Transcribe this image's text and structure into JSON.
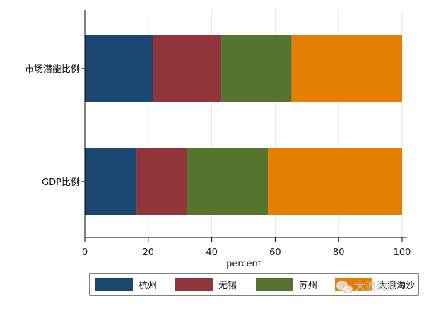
{
  "chart_data": {
    "type": "bar",
    "orientation": "horizontal",
    "stacked": true,
    "percent": true,
    "categories": [
      "市场潜能比例",
      "GDP比例"
    ],
    "series": [
      {
        "name": "杭州",
        "values": [
          21.6,
          16.4
        ],
        "color": "#1a476f"
      },
      {
        "name": "无锡",
        "values": [
          21.4,
          15.9
        ],
        "color": "#90353b"
      },
      {
        "name": "苏州",
        "values": [
          22.2,
          25.4
        ],
        "color": "#55752f"
      },
      {
        "name": "大浪淘沙",
        "values": [
          34.8,
          42.3
        ],
        "color": "#e37e00"
      }
    ],
    "xlabel": "percent",
    "xlim": [
      0,
      100
    ],
    "xticks": [
      0,
      20,
      40,
      60,
      80,
      100
    ],
    "grid": true,
    "legend_position": "bottom"
  },
  "watermark": {
    "text": "大浪淘沙",
    "icon": "wechat-icon"
  }
}
